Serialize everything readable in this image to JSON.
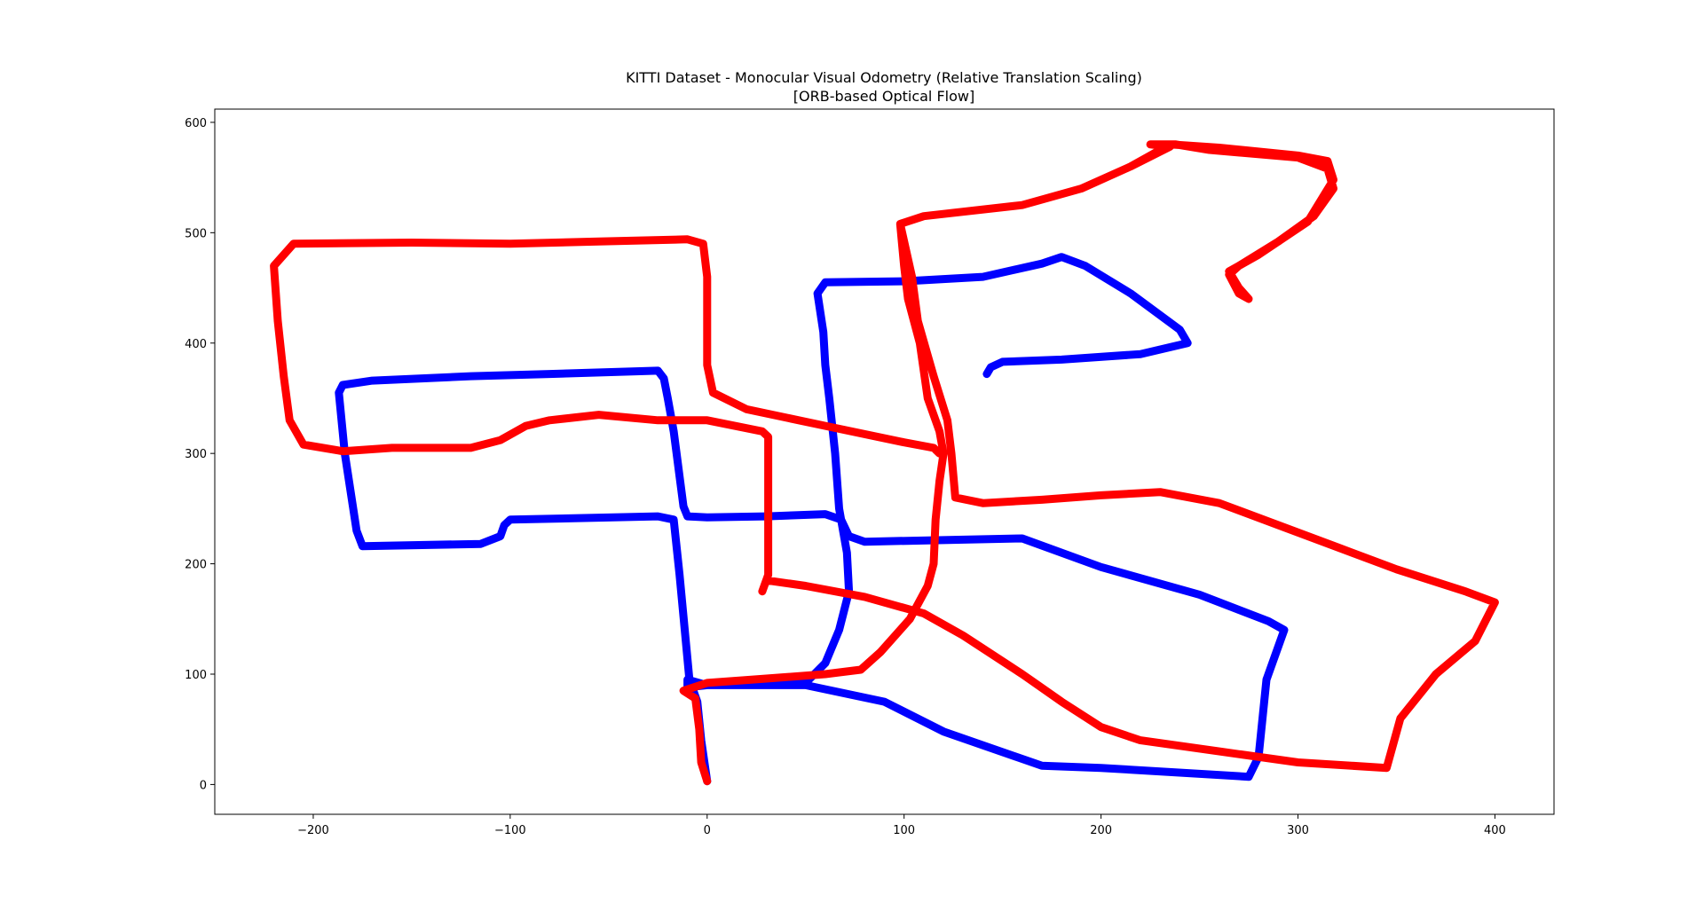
{
  "chart_data": {
    "type": "line",
    "title_lines": [
      "KITTI Dataset - Monocular Visual Odometry (Relative Translation Scaling)",
      "[ORB-based Optical Flow]"
    ],
    "xlabel": "",
    "ylabel": "",
    "xlim": [
      -250,
      430
    ],
    "ylim": [
      -27,
      612
    ],
    "xticks": [
      -200,
      -100,
      0,
      100,
      200,
      300,
      400
    ],
    "yticks": [
      0,
      100,
      200,
      300,
      400,
      500,
      600
    ],
    "xtick_labels": [
      "−200",
      "−100",
      "0",
      "100",
      "200",
      "300",
      "400"
    ],
    "ytick_labels": [
      "0",
      "100",
      "200",
      "300",
      "400",
      "500",
      "600"
    ],
    "grid": false,
    "legend": "none",
    "series": [
      {
        "color": "#0000ff",
        "points": [
          [
            0,
            3
          ],
          [
            -3,
            40
          ],
          [
            -5,
            75
          ],
          [
            -9,
            95
          ],
          [
            -14,
            190
          ],
          [
            -17,
            240
          ],
          [
            -25,
            243
          ],
          [
            -100,
            240
          ],
          [
            -103,
            235
          ],
          [
            -105,
            225
          ],
          [
            -115,
            218
          ],
          [
            -175,
            216
          ],
          [
            -178,
            230
          ],
          [
            -184,
            300
          ],
          [
            -187,
            355
          ],
          [
            -185,
            362
          ],
          [
            -170,
            366
          ],
          [
            -120,
            370
          ],
          [
            -80,
            372
          ],
          [
            -25,
            375
          ],
          [
            -22,
            368
          ],
          [
            -20,
            350
          ],
          [
            -17,
            320
          ],
          [
            -12,
            252
          ],
          [
            -10,
            243
          ],
          [
            0,
            242
          ],
          [
            30,
            243
          ],
          [
            60,
            245
          ],
          [
            68,
            240
          ],
          [
            72,
            225
          ],
          [
            80,
            220
          ],
          [
            160,
            223
          ],
          [
            200,
            197
          ],
          [
            250,
            172
          ],
          [
            285,
            148
          ],
          [
            293,
            140
          ],
          [
            284,
            95
          ],
          [
            280,
            25
          ],
          [
            275,
            7
          ],
          [
            200,
            15
          ],
          [
            170,
            17
          ],
          [
            120,
            48
          ],
          [
            90,
            75
          ],
          [
            50,
            90
          ],
          [
            0,
            90
          ],
          [
            -10,
            88
          ],
          [
            -10,
            95
          ],
          [
            0,
            90
          ],
          [
            50,
            92
          ],
          [
            60,
            110
          ],
          [
            67,
            140
          ],
          [
            72,
            175
          ],
          [
            71,
            210
          ],
          [
            67,
            250
          ],
          [
            65,
            300
          ],
          [
            62,
            350
          ],
          [
            60,
            380
          ],
          [
            59,
            410
          ],
          [
            56,
            445
          ],
          [
            60,
            455
          ],
          [
            100,
            456
          ],
          [
            140,
            460
          ],
          [
            170,
            472
          ],
          [
            180,
            478
          ],
          [
            192,
            470
          ],
          [
            215,
            445
          ],
          [
            240,
            412
          ],
          [
            244,
            400
          ],
          [
            220,
            390
          ],
          [
            180,
            385
          ],
          [
            150,
            383
          ],
          [
            144,
            378
          ],
          [
            142,
            372
          ]
        ]
      },
      {
        "color": "#ff0000",
        "points": [
          [
            0,
            3
          ],
          [
            -3,
            20
          ],
          [
            -4,
            50
          ],
          [
            -6,
            78
          ],
          [
            -12,
            85
          ],
          [
            0,
            92
          ],
          [
            30,
            96
          ],
          [
            60,
            100
          ],
          [
            78,
            104
          ],
          [
            88,
            120
          ],
          [
            103,
            150
          ],
          [
            112,
            180
          ],
          [
            115,
            200
          ],
          [
            116,
            240
          ],
          [
            118,
            275
          ],
          [
            120,
            300
          ],
          [
            118,
            320
          ],
          [
            112,
            350
          ],
          [
            108,
            400
          ],
          [
            102,
            440
          ],
          [
            100,
            470
          ],
          [
            98,
            508
          ],
          [
            110,
            515
          ],
          [
            160,
            525
          ],
          [
            190,
            540
          ],
          [
            215,
            560
          ],
          [
            225,
            570
          ],
          [
            235,
            580
          ],
          [
            260,
            577
          ],
          [
            300,
            570
          ],
          [
            315,
            565
          ],
          [
            318,
            548
          ],
          [
            305,
            510
          ],
          [
            280,
            480
          ],
          [
            265,
            465
          ],
          [
            270,
            450
          ],
          [
            275,
            440
          ],
          [
            270,
            445
          ],
          [
            265,
            462
          ],
          [
            270,
            470
          ],
          [
            290,
            492
          ],
          [
            308,
            515
          ],
          [
            318,
            540
          ],
          [
            315,
            558
          ],
          [
            300,
            568
          ],
          [
            255,
            575
          ],
          [
            238,
            580
          ],
          [
            225,
            580
          ],
          [
            235,
            578
          ],
          [
            215,
            560
          ],
          [
            190,
            540
          ],
          [
            160,
            525
          ],
          [
            110,
            515
          ],
          [
            98,
            508
          ],
          [
            104,
            460
          ],
          [
            107,
            420
          ],
          [
            115,
            370
          ],
          [
            122,
            330
          ],
          [
            124,
            300
          ],
          [
            126,
            260
          ],
          [
            140,
            255
          ],
          [
            170,
            258
          ],
          [
            200,
            262
          ],
          [
            230,
            265
          ],
          [
            260,
            255
          ],
          [
            290,
            235
          ],
          [
            320,
            215
          ],
          [
            350,
            195
          ],
          [
            385,
            175
          ],
          [
            400,
            165
          ],
          [
            390,
            130
          ],
          [
            370,
            100
          ],
          [
            352,
            60
          ],
          [
            345,
            15
          ],
          [
            300,
            20
          ],
          [
            260,
            30
          ],
          [
            220,
            40
          ],
          [
            200,
            52
          ],
          [
            180,
            75
          ],
          [
            160,
            100
          ],
          [
            130,
            135
          ],
          [
            110,
            155
          ],
          [
            80,
            170
          ],
          [
            50,
            180
          ],
          [
            30,
            185
          ],
          [
            28,
            175
          ],
          [
            31,
            190
          ],
          [
            31,
            240
          ],
          [
            31,
            290
          ],
          [
            31,
            315
          ],
          [
            28,
            320
          ],
          [
            0,
            330
          ],
          [
            -25,
            330
          ],
          [
            -55,
            335
          ],
          [
            -80,
            330
          ],
          [
            -92,
            325
          ],
          [
            -105,
            312
          ],
          [
            -120,
            305
          ],
          [
            -160,
            305
          ],
          [
            -185,
            302
          ],
          [
            -205,
            308
          ],
          [
            -212,
            330
          ],
          [
            -215,
            370
          ],
          [
            -218,
            420
          ],
          [
            -220,
            470
          ],
          [
            -210,
            490
          ],
          [
            -150,
            491
          ],
          [
            -100,
            490
          ],
          [
            -55,
            492
          ],
          [
            -10,
            494
          ],
          [
            -2,
            490
          ],
          [
            0,
            460
          ],
          [
            0,
            420
          ],
          [
            0,
            380
          ],
          [
            3,
            355
          ],
          [
            20,
            340
          ],
          [
            60,
            325
          ],
          [
            100,
            310
          ],
          [
            115,
            305
          ],
          [
            118,
            300
          ]
        ]
      }
    ]
  }
}
